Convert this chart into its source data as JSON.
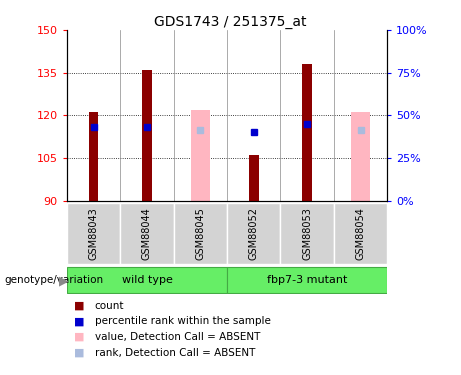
{
  "title": "GDS1743 / 251375_at",
  "samples": [
    "GSM88043",
    "GSM88044",
    "GSM88045",
    "GSM88052",
    "GSM88053",
    "GSM88054"
  ],
  "ylim_left": [
    90,
    150
  ],
  "ylim_right": [
    0,
    100
  ],
  "yticks_left": [
    90,
    105,
    120,
    135,
    150
  ],
  "yticks_right": [
    0,
    25,
    50,
    75,
    100
  ],
  "yticklabels_right": [
    "0%",
    "25%",
    "50%",
    "75%",
    "100%"
  ],
  "bar_bottom": 90,
  "red_bars": {
    "GSM88043": 121,
    "GSM88044": 136,
    "GSM88045": null,
    "GSM88052": 106,
    "GSM88053": 138,
    "GSM88054": null
  },
  "pink_bars": {
    "GSM88043": null,
    "GSM88044": null,
    "GSM88045": 122,
    "GSM88052": null,
    "GSM88053": null,
    "GSM88054": 121
  },
  "blue_squares": {
    "GSM88043": 116,
    "GSM88044": 116,
    "GSM88045": null,
    "GSM88052": 114,
    "GSM88053": 117,
    "GSM88054": null
  },
  "lavender_squares": {
    "GSM88043": null,
    "GSM88044": null,
    "GSM88045": 115,
    "GSM88052": null,
    "GSM88053": null,
    "GSM88054": 115
  },
  "colors": {
    "red": "#8B0000",
    "pink": "#FFB6C1",
    "blue": "#0000CD",
    "lavender": "#AABBDD",
    "bg_label": "#D3D3D3",
    "bg_group": "#66EE66"
  },
  "legend": [
    {
      "color": "#8B0000",
      "label": "count"
    },
    {
      "color": "#0000CD",
      "label": "percentile rank within the sample"
    },
    {
      "color": "#FFB6C1",
      "label": "value, Detection Call = ABSENT"
    },
    {
      "color": "#AABBDD",
      "label": "rank, Detection Call = ABSENT"
    }
  ],
  "red_bar_width": 0.18,
  "pink_bar_width": 0.35
}
